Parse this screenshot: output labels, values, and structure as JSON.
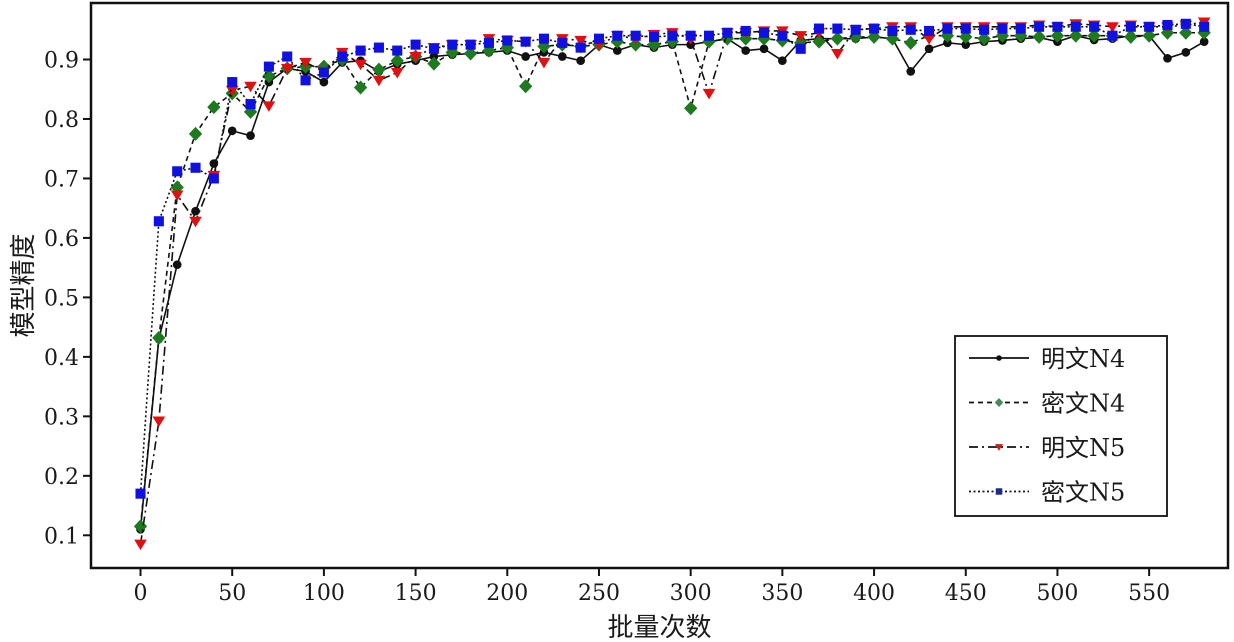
{
  "chart_data": {
    "type": "line",
    "title": "",
    "xlabel": "批量次数",
    "ylabel": "模型精度",
    "xlim": [
      -27,
      593
    ],
    "ylim": [
      0.045,
      0.995
    ],
    "x_ticks": [
      0,
      50,
      100,
      150,
      200,
      250,
      300,
      350,
      400,
      450,
      500,
      550
    ],
    "y_ticks": [
      0.1,
      0.2,
      0.3,
      0.4,
      0.5,
      0.6,
      0.7,
      0.8,
      0.9
    ],
    "grid": false,
    "legend_position": "bottom-right",
    "x": [
      0,
      10,
      20,
      30,
      40,
      50,
      60,
      70,
      80,
      90,
      100,
      110,
      120,
      130,
      140,
      150,
      160,
      170,
      180,
      190,
      200,
      210,
      220,
      230,
      240,
      250,
      260,
      270,
      280,
      290,
      300,
      310,
      320,
      330,
      340,
      350,
      360,
      370,
      380,
      390,
      400,
      410,
      420,
      430,
      440,
      450,
      460,
      470,
      480,
      490,
      500,
      510,
      520,
      530,
      540,
      550,
      560,
      570,
      580
    ],
    "series": [
      {
        "name": "明文N4",
        "color": "#111111",
        "marker": "circle",
        "line_style": "solid",
        "values": [
          0.11,
          0.43,
          0.555,
          0.645,
          0.725,
          0.78,
          0.772,
          0.862,
          0.885,
          0.88,
          0.862,
          0.895,
          0.898,
          0.88,
          0.892,
          0.898,
          0.905,
          0.908,
          0.91,
          0.912,
          0.915,
          0.905,
          0.912,
          0.905,
          0.898,
          0.925,
          0.915,
          0.925,
          0.92,
          0.925,
          0.925,
          0.93,
          0.935,
          0.915,
          0.918,
          0.898,
          0.932,
          0.935,
          0.935,
          0.935,
          0.938,
          0.935,
          0.88,
          0.918,
          0.928,
          0.925,
          0.93,
          0.932,
          0.935,
          0.937,
          0.93,
          0.94,
          0.933,
          0.935,
          0.94,
          0.94,
          0.902,
          0.912,
          0.93
        ]
      },
      {
        "name": "密文N4",
        "color": "#1e7a1e",
        "legend_color": "#4a8a5a",
        "marker": "diamond",
        "line_style": "dashed",
        "values": [
          0.115,
          0.432,
          0.685,
          0.775,
          0.82,
          0.843,
          0.812,
          0.872,
          0.885,
          0.888,
          0.888,
          0.9,
          0.853,
          0.883,
          0.898,
          0.905,
          0.893,
          0.912,
          0.91,
          0.915,
          0.92,
          0.855,
          0.922,
          0.925,
          0.922,
          0.925,
          0.93,
          0.925,
          0.925,
          0.93,
          0.818,
          0.93,
          0.935,
          0.935,
          0.935,
          0.932,
          0.928,
          0.93,
          0.935,
          0.938,
          0.938,
          0.935,
          0.928,
          0.94,
          0.94,
          0.938,
          0.935,
          0.94,
          0.94,
          0.938,
          0.94,
          0.94,
          0.94,
          0.94,
          0.938,
          0.94,
          0.945,
          0.945,
          0.945
        ]
      },
      {
        "name": "明文N5",
        "color": "#e01010",
        "legend_color": "#c81e1e",
        "marker": "triangle-down",
        "line_style": "dashdot",
        "values": [
          0.085,
          0.292,
          0.672,
          0.628,
          0.705,
          0.848,
          0.855,
          0.822,
          0.885,
          0.895,
          0.88,
          0.912,
          0.892,
          0.865,
          0.878,
          0.905,
          0.92,
          0.925,
          0.925,
          0.935,
          0.932,
          0.93,
          0.895,
          0.935,
          0.932,
          0.925,
          0.94,
          0.935,
          0.942,
          0.945,
          0.935,
          0.843,
          0.945,
          0.945,
          0.948,
          0.948,
          0.94,
          0.945,
          0.91,
          0.95,
          0.952,
          0.955,
          0.955,
          0.935,
          0.955,
          0.955,
          0.955,
          0.955,
          0.955,
          0.958,
          0.955,
          0.96,
          0.958,
          0.955,
          0.958,
          0.955,
          0.955,
          0.958,
          0.963
        ]
      },
      {
        "name": "密文N5",
        "color": "#1010e0",
        "legend_color": "#1e2a8a",
        "marker": "square",
        "line_style": "dotted",
        "values": [
          0.17,
          0.628,
          0.712,
          0.718,
          0.7,
          0.862,
          0.825,
          0.888,
          0.905,
          0.865,
          0.878,
          0.905,
          0.915,
          0.92,
          0.915,
          0.925,
          0.918,
          0.925,
          0.925,
          0.928,
          0.932,
          0.93,
          0.935,
          0.928,
          0.92,
          0.935,
          0.94,
          0.94,
          0.938,
          0.94,
          0.94,
          0.94,
          0.945,
          0.948,
          0.945,
          0.94,
          0.918,
          0.952,
          0.952,
          0.95,
          0.952,
          0.948,
          0.95,
          0.948,
          0.952,
          0.952,
          0.95,
          0.952,
          0.952,
          0.955,
          0.955,
          0.955,
          0.955,
          0.94,
          0.955,
          0.955,
          0.958,
          0.96,
          0.955
        ]
      }
    ]
  }
}
